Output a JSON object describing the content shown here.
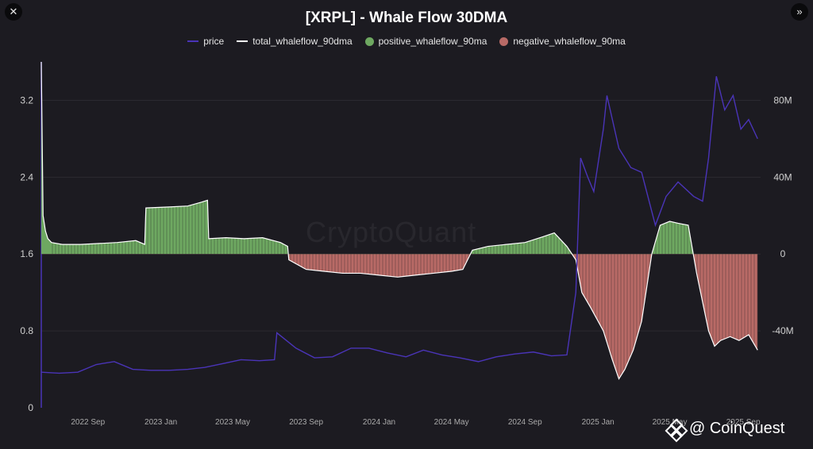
{
  "window": {
    "close_glyph": "✕",
    "next_glyph": "»",
    "close_icon": "close-icon",
    "next_icon": "double-chevron-right-icon"
  },
  "watermark": "CryptoQuant",
  "brand": {
    "text": "@ CoinQuest",
    "icon": "binance-diamond-icon"
  },
  "colors": {
    "price": "#4a34b8",
    "total": "#ffffff",
    "positive": "#6ea861",
    "negative": "#b86a66",
    "background": "#1c1b21",
    "grid": "#2b2a31"
  },
  "chart_data": {
    "type": "line",
    "title": "[XRPL] - Whale Flow 30DMA",
    "legend": [
      {
        "label": "price",
        "marker": "line",
        "color": "#4a34b8"
      },
      {
        "label": "total_whaleflow_90dma",
        "marker": "line",
        "color": "#ffffff"
      },
      {
        "label": "positive_whaleflow_90ma",
        "marker": "dot",
        "color": "#6ea861"
      },
      {
        "label": "negative_whaleflow_90ma",
        "marker": "dot",
        "color": "#b86a66"
      }
    ],
    "legend_position": "top-center",
    "x_range": [
      "2022-06-15",
      "2025-09-30"
    ],
    "x_ticks": [
      {
        "date": "2022-09-01",
        "label": "2022 Sep"
      },
      {
        "date": "2023-01-01",
        "label": "2023 Jan"
      },
      {
        "date": "2023-05-01",
        "label": "2023 May"
      },
      {
        "date": "2023-09-01",
        "label": "2023 Sep"
      },
      {
        "date": "2024-01-01",
        "label": "2024 Jan"
      },
      {
        "date": "2024-05-01",
        "label": "2024 May"
      },
      {
        "date": "2024-09-01",
        "label": "2024 Sep"
      },
      {
        "date": "2025-01-01",
        "label": "2025 Jan"
      },
      {
        "date": "2025-05-01",
        "label": "2025 May"
      },
      {
        "date": "2025-09-01",
        "label": "2025 Sep"
      }
    ],
    "y_left": {
      "range": [
        0,
        3.6
      ],
      "ticks": [
        0,
        0.8,
        1.6,
        2.4,
        3.2
      ],
      "tick_labels": [
        "0",
        "0.8",
        "1.6",
        "2.4",
        "3.2"
      ]
    },
    "y_right": {
      "range": [
        -80000000,
        100000000
      ],
      "ticks": [
        -40000000,
        0,
        40000000,
        80000000
      ],
      "tick_labels": [
        "-40M",
        "0",
        "40M",
        "80M"
      ]
    },
    "grid": true,
    "price": {
      "name": "price",
      "x": [
        "2022-06-15",
        "2022-07-15",
        "2022-08-15",
        "2022-09-15",
        "2022-10-15",
        "2022-11-15",
        "2022-12-15",
        "2023-01-15",
        "2023-02-15",
        "2023-03-15",
        "2023-04-15",
        "2023-05-15",
        "2023-06-15",
        "2023-07-10",
        "2023-07-14",
        "2023-08-15",
        "2023-09-15",
        "2023-10-15",
        "2023-11-15",
        "2023-12-15",
        "2024-01-15",
        "2024-02-15",
        "2024-03-15",
        "2024-04-15",
        "2024-05-15",
        "2024-06-15",
        "2024-07-15",
        "2024-08-15",
        "2024-09-15",
        "2024-10-15",
        "2024-11-10",
        "2024-11-25",
        "2024-12-03",
        "2024-12-15",
        "2024-12-25",
        "2025-01-10",
        "2025-01-16",
        "2025-02-05",
        "2025-02-25",
        "2025-03-15",
        "2025-04-07",
        "2025-04-25",
        "2025-05-15",
        "2025-06-10",
        "2025-06-25",
        "2025-07-05",
        "2025-07-18",
        "2025-08-01",
        "2025-08-15",
        "2025-08-28",
        "2025-09-10",
        "2025-09-25"
      ],
      "y": [
        0.37,
        0.36,
        0.37,
        0.45,
        0.48,
        0.4,
        0.39,
        0.39,
        0.4,
        0.42,
        0.46,
        0.5,
        0.49,
        0.5,
        0.78,
        0.62,
        0.52,
        0.53,
        0.62,
        0.62,
        0.57,
        0.53,
        0.6,
        0.55,
        0.52,
        0.48,
        0.53,
        0.56,
        0.58,
        0.54,
        0.55,
        1.2,
        2.6,
        2.4,
        2.25,
        2.9,
        3.25,
        2.7,
        2.5,
        2.45,
        1.9,
        2.2,
        2.35,
        2.2,
        2.15,
        2.6,
        3.45,
        3.1,
        3.25,
        2.9,
        3.0,
        2.8
      ]
    },
    "whaleflow": {
      "name": "total_whaleflow_90dma",
      "x": [
        "2022-06-15",
        "2022-06-18",
        "2022-06-22",
        "2022-06-26",
        "2022-07-02",
        "2022-07-20",
        "2022-08-20",
        "2022-09-20",
        "2022-10-20",
        "2022-11-20",
        "2022-12-05",
        "2022-12-07",
        "2023-01-15",
        "2023-02-15",
        "2023-03-10",
        "2023-03-20",
        "2023-03-22",
        "2023-04-20",
        "2023-05-20",
        "2023-06-20",
        "2023-07-20",
        "2023-08-01",
        "2023-08-03",
        "2023-09-01",
        "2023-10-01",
        "2023-11-01",
        "2023-12-01",
        "2024-01-01",
        "2024-02-01",
        "2024-03-01",
        "2024-04-01",
        "2024-05-01",
        "2024-05-20",
        "2024-06-05",
        "2024-07-01",
        "2024-08-01",
        "2024-09-01",
        "2024-10-01",
        "2024-10-20",
        "2024-11-10",
        "2024-11-25",
        "2024-12-05",
        "2024-12-20",
        "2025-01-10",
        "2025-01-25",
        "2025-02-05",
        "2025-02-15",
        "2025-03-01",
        "2025-03-15",
        "2025-04-01",
        "2025-04-15",
        "2025-05-01",
        "2025-05-15",
        "2025-06-01",
        "2025-06-15",
        "2025-06-25",
        "2025-07-05",
        "2025-07-15",
        "2025-07-25",
        "2025-08-10",
        "2025-08-25",
        "2025-09-10",
        "2025-09-25"
      ],
      "y": [
        100000000,
        20000000,
        12000000,
        8000000,
        6000000,
        5000000,
        5000000,
        5500000,
        6000000,
        7000000,
        5000000,
        24000000,
        24500000,
        25000000,
        27000000,
        28000000,
        8000000,
        8500000,
        8000000,
        8500000,
        6000000,
        4000000,
        -3000000,
        -8000000,
        -9000000,
        -10000000,
        -10000000,
        -11000000,
        -12000000,
        -11000000,
        -10000000,
        -9000000,
        -8000000,
        2000000,
        4000000,
        5000000,
        6000000,
        9000000,
        11000000,
        4000000,
        -3000000,
        -20000000,
        -28000000,
        -40000000,
        -55000000,
        -65000000,
        -60000000,
        -50000000,
        -35000000,
        0,
        15000000,
        17000000,
        16000000,
        15000000,
        -10000000,
        -25000000,
        -40000000,
        -48000000,
        -45000000,
        -43000000,
        -45000000,
        -42000000,
        -50000000
      ]
    }
  }
}
